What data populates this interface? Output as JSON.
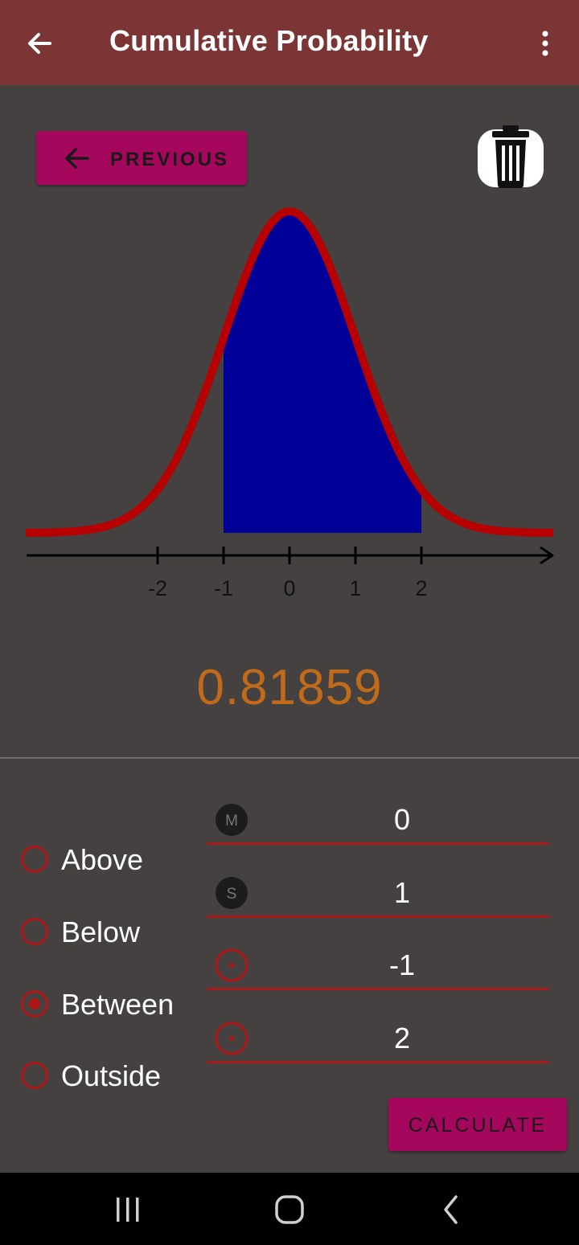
{
  "appbar": {
    "title": "Cumulative Probability",
    "back_icon": "arrow-left-icon",
    "menu_icon": "more-vert-icon"
  },
  "toolbar": {
    "previous_label": "PREVIOUS",
    "previous_icon": "arrow-left-icon",
    "delete_icon": "trash-icon"
  },
  "chart_data": {
    "type": "area",
    "title": "",
    "xlabel": "",
    "ylabel": "",
    "x_ticks": [
      "-2",
      "-1",
      "0",
      "1",
      "2"
    ],
    "curve": "standard normal density",
    "shaded_from": -1,
    "shaded_to": 2,
    "xlim": [
      -4,
      4
    ]
  },
  "result": "0.81859",
  "options": [
    {
      "label": "Above",
      "selected": false
    },
    {
      "label": "Below",
      "selected": false
    },
    {
      "label": "Between",
      "selected": true
    },
    {
      "label": "Outside",
      "selected": false
    }
  ],
  "fields": [
    {
      "icon_letter": "M",
      "icon": "mean-icon",
      "value": "0"
    },
    {
      "icon_letter": "S",
      "icon": "std-dev-icon",
      "value": "1"
    },
    {
      "icon_letter": "",
      "icon": "target-dot-icon",
      "value": "-1"
    },
    {
      "icon_letter": "",
      "icon": "target-dot-icon",
      "value": "2"
    }
  ],
  "calculate_label": "CALCULATE",
  "colors": {
    "appbar": "#7b3535",
    "background": "#454141",
    "accent_button": "#a5075d",
    "curve": "#b70000",
    "shade": "#000099",
    "result": "#c06a1a"
  },
  "navbar": {
    "recents_icon": "recents-icon",
    "home_icon": "home-icon",
    "back_icon": "nav-back-icon"
  }
}
